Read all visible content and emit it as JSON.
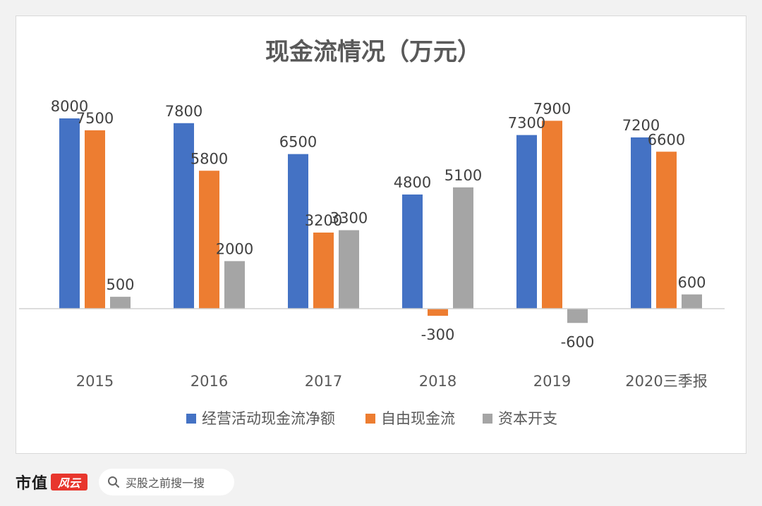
{
  "chart_data": {
    "type": "bar",
    "title": "现金流情况（万元）",
    "categories": [
      "2015",
      "2016",
      "2017",
      "2018",
      "2019",
      "2020三季报"
    ],
    "series": [
      {
        "name": "经营活动现金流净额",
        "color": "#4472c4",
        "values": [
          8000,
          7800,
          6500,
          4800,
          7300,
          7200
        ]
      },
      {
        "name": "自由现金流",
        "color": "#ed7d31",
        "values": [
          7500,
          5800,
          3200,
          -300,
          7900,
          6600
        ]
      },
      {
        "name": "资本开支",
        "color": "#a5a5a5",
        "values": [
          500,
          2000,
          3300,
          5100,
          -600,
          600
        ]
      }
    ],
    "xlabel": "",
    "ylabel": "",
    "ylim": [
      -600,
      8000
    ],
    "grid": false,
    "legend": "bottom"
  },
  "footer": {
    "brand": "市值",
    "brand_logo_text": "风云",
    "search_placeholder": "买股之前搜一搜"
  }
}
